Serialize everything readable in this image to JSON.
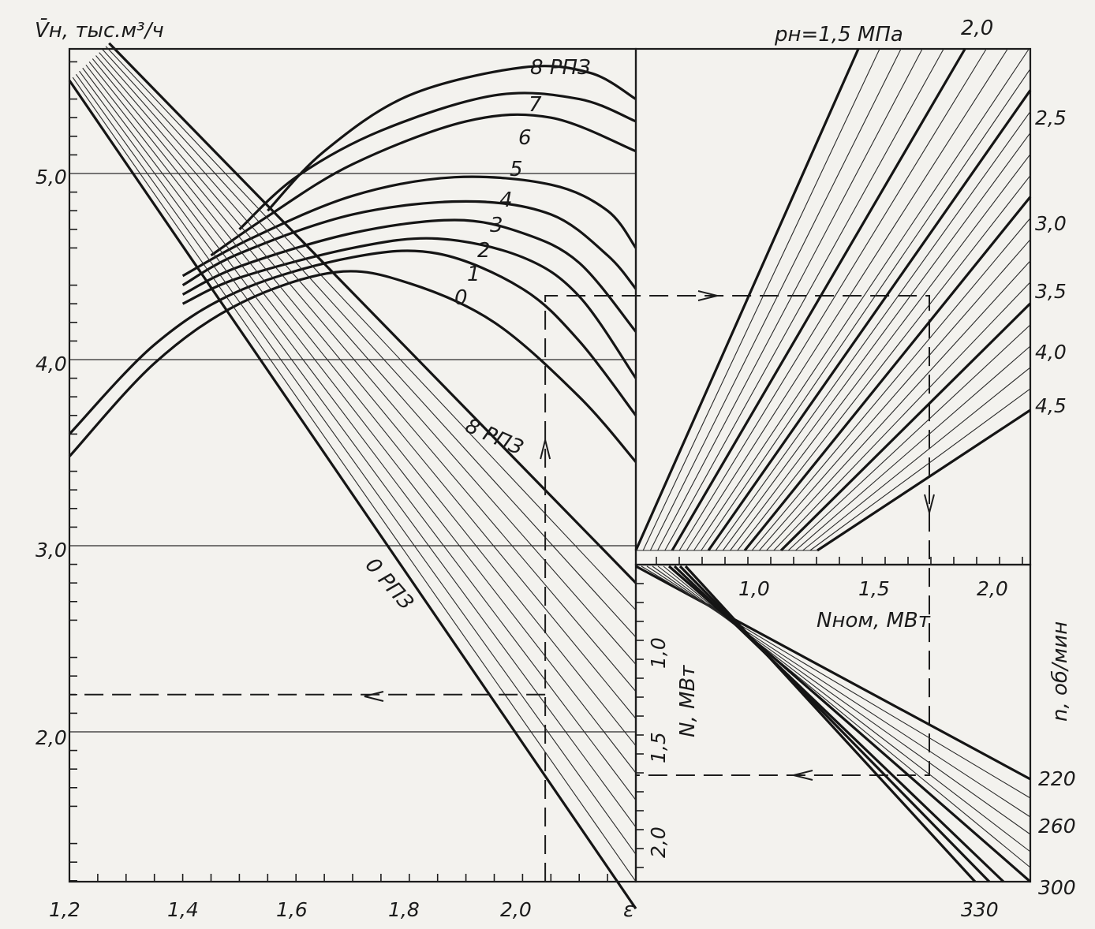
{
  "chart_data": [
    {
      "type": "line",
      "title": "",
      "panel": "left",
      "ylabel": "V̄н, тыс.м³/ч",
      "xlabel": "ε",
      "xlim": [
        1.2,
        2.2
      ],
      "ylim": [
        1.0,
        5.7
      ],
      "x_ticks": [
        "1,2",
        "1,4",
        "1,6",
        "1,8",
        "2,0"
      ],
      "y_ticks": [
        "2,0",
        "3,0",
        "4,0",
        "5,0"
      ],
      "grid_y": [
        2.0,
        3.0,
        4.0,
        5.0
      ],
      "curve_labels": [
        "8 РПЗ",
        "7",
        "6",
        "5",
        "4",
        "3",
        "2",
        "1",
        "0"
      ],
      "line_labels": [
        "8 РПЗ",
        "0 РПЗ"
      ],
      "series": [
        {
          "name": "0",
          "x": [
            1.2,
            1.35,
            1.5,
            1.67,
            1.8,
            1.95,
            2.1,
            2.2
          ],
          "values": [
            3.48,
            3.98,
            4.3,
            4.47,
            4.41,
            4.2,
            3.8,
            3.45
          ]
        },
        {
          "name": "1",
          "x": [
            1.2,
            1.35,
            1.5,
            1.7,
            1.85,
            2.0,
            2.1,
            2.2
          ],
          "values": [
            3.6,
            4.08,
            4.37,
            4.55,
            4.57,
            4.38,
            4.1,
            3.7
          ]
        },
        {
          "name": "2",
          "x": [
            1.4,
            1.5,
            1.7,
            1.85,
            2.0,
            2.1,
            2.2
          ],
          "values": [
            4.3,
            4.44,
            4.6,
            4.65,
            4.55,
            4.34,
            3.9
          ]
        },
        {
          "name": "3",
          "x": [
            1.4,
            1.5,
            1.7,
            1.88,
            2.0,
            2.1,
            2.2
          ],
          "values": [
            4.35,
            4.5,
            4.68,
            4.75,
            4.68,
            4.52,
            4.15
          ]
        },
        {
          "name": "4",
          "x": [
            1.4,
            1.5,
            1.7,
            1.9,
            2.05,
            2.15,
            2.2
          ],
          "values": [
            4.4,
            4.57,
            4.78,
            4.85,
            4.78,
            4.56,
            4.38
          ]
        },
        {
          "name": "5",
          "x": [
            1.4,
            1.52,
            1.7,
            1.88,
            2.05,
            2.15,
            2.2
          ],
          "values": [
            4.45,
            4.65,
            4.88,
            4.98,
            4.94,
            4.8,
            4.6
          ]
        },
        {
          "name": "6",
          "x": [
            1.45,
            1.55,
            1.7,
            1.9,
            2.05,
            2.2
          ],
          "values": [
            4.56,
            4.77,
            5.05,
            5.28,
            5.3,
            5.12
          ]
        },
        {
          "name": "7",
          "x": [
            1.5,
            1.6,
            1.75,
            1.95,
            2.1,
            2.2
          ],
          "values": [
            4.7,
            4.98,
            5.23,
            5.42,
            5.4,
            5.28
          ]
        },
        {
          "name": "8 РПЗ",
          "x": [
            1.55,
            1.65,
            1.8,
            2.0,
            2.12,
            2.2
          ],
          "values": [
            4.8,
            5.12,
            5.42,
            5.57,
            5.54,
            5.4
          ]
        },
        {
          "name": "0 РПЗ",
          "x": [
            1.2,
            2.2
          ],
          "values": [
            5.5,
            1.05
          ]
        },
        {
          "name": "8 РПЗ",
          "x": [
            1.27,
            2.2
          ],
          "values": [
            5.7,
            2.8
          ]
        }
      ],
      "dashed_reading": {
        "x": 2.04,
        "y": 2.2
      }
    },
    {
      "type": "line",
      "panel": "top-right",
      "xlabel": "Nном, МВт",
      "x_ticks": [
        "1,0",
        "1,5",
        "2,0"
      ],
      "top_label": "pн=1,5 МПа",
      "top_label_2": "2,0",
      "pressure_ticks": [
        "2,5",
        "3,0",
        "3,5",
        "4,0",
        "4,5"
      ]
    },
    {
      "type": "line",
      "panel": "bottom-right",
      "ylabel": "N, МВт",
      "y_ticks": [
        "1,0",
        "1,5",
        "2,0"
      ],
      "n_label": "n, об/мин",
      "n_ticks": [
        "220",
        "260",
        "300"
      ],
      "bottom_tick": "330"
    }
  ]
}
